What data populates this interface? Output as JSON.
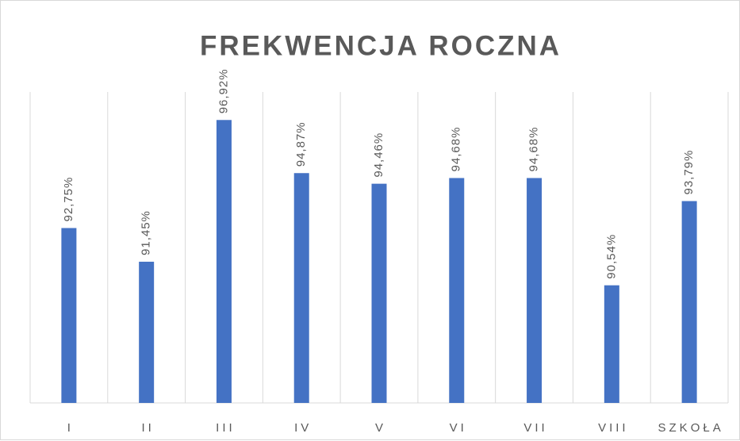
{
  "chart_data": {
    "type": "bar",
    "title": "FREKWENCJA ROCZNA",
    "categories": [
      "I",
      "II",
      "III",
      "IV",
      "V",
      "VI",
      "VII",
      "VIII",
      "SZKOŁA"
    ],
    "values": [
      92.75,
      91.45,
      96.92,
      94.87,
      94.46,
      94.68,
      94.68,
      90.54,
      93.79
    ],
    "value_labels": [
      "92,75%",
      "91,45%",
      "96,92%",
      "94,87%",
      "94,46%",
      "94,68%",
      "94,68%",
      "90,54%",
      "93,79%"
    ],
    "color": "#4472c4",
    "ylim": [
      86,
      98
    ],
    "grid": true
  }
}
